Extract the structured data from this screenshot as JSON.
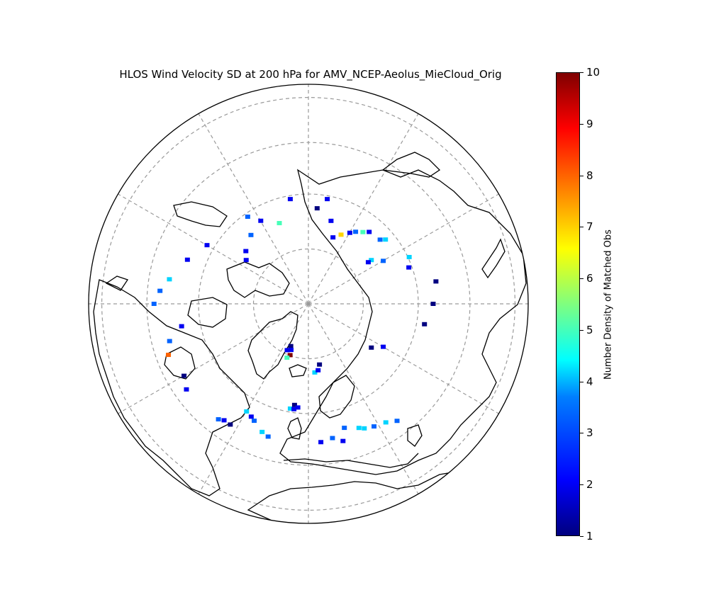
{
  "title": "HLOS Wind Velocity SD at 200 hPa for AMV_NCEP-Aeolus_MieCloud_Orig",
  "projection": "north-polar-stereographic",
  "grid": true,
  "colorbar": {
    "label": "Number Density of Matched Obs",
    "min": 1,
    "max": 10,
    "colormap": "jet",
    "ticks": [
      "1",
      "2",
      "3",
      "4",
      "5",
      "6",
      "7",
      "8",
      "9",
      "10"
    ]
  },
  "chart_data": {
    "type": "heatmap",
    "title": "HLOS Wind Velocity SD at 200 hPa for AMV_NCEP-Aeolus_MieCloud_Orig",
    "value_label": "Number Density of Matched Obs",
    "value_range": [
      1,
      10
    ],
    "cells": [
      {
        "lon": -38,
        "lat": 13,
        "v": 3
      },
      {
        "lon": -36,
        "lat": 14,
        "v": 2
      },
      {
        "lon": -33,
        "lat": 14,
        "v": 1
      },
      {
        "lon": -30,
        "lat": 22,
        "v": 4
      },
      {
        "lon": -27,
        "lat": 21,
        "v": 2
      },
      {
        "lon": -25,
        "lat": 20,
        "v": 3
      },
      {
        "lon": -20,
        "lat": 17,
        "v": 4
      },
      {
        "lon": -17,
        "lat": 16,
        "v": 3
      },
      {
        "lon": -10,
        "lat": 30,
        "v": 4
      },
      {
        "lon": -8,
        "lat": 32,
        "v": 1
      },
      {
        "lon": -8,
        "lat": 30,
        "v": 2
      },
      {
        "lon": -6,
        "lat": 31,
        "v": 2
      },
      {
        "lon": 5,
        "lat": 16,
        "v": 2
      },
      {
        "lon": 10,
        "lat": 17,
        "v": 3
      },
      {
        "lon": 14,
        "lat": 15,
        "v": 2
      },
      {
        "lon": 16,
        "lat": 20,
        "v": 3
      },
      {
        "lon": 22,
        "lat": 18,
        "v": 4
      },
      {
        "lon": 24,
        "lat": 17,
        "v": 4
      },
      {
        "lon": 28,
        "lat": 16,
        "v": 3
      },
      {
        "lon": 33,
        "lat": 15,
        "v": 4
      },
      {
        "lon": 37,
        "lat": 13,
        "v": 3
      },
      {
        "lon": 5,
        "lat": 49,
        "v": 4
      },
      {
        "lon": 8,
        "lat": 50,
        "v": 2
      },
      {
        "lon": 10,
        "lat": 53,
        "v": 1
      },
      {
        "lon": -25,
        "lat": 59,
        "v": 2
      },
      {
        "lon": -23,
        "lat": 62,
        "v": 1
      },
      {
        "lon": -21,
        "lat": 60,
        "v": 2
      },
      {
        "lon": -20,
        "lat": 57,
        "v": 10
      },
      {
        "lon": -22,
        "lat": 55,
        "v": 5
      },
      {
        "lon": 132,
        "lat": 35,
        "v": 3
      },
      {
        "lon": 130,
        "lat": 33,
        "v": 4
      },
      {
        "lon": 140,
        "lat": 36,
        "v": 2
      },
      {
        "lon": 143,
        "lat": 38,
        "v": 5
      },
      {
        "lon": 150,
        "lat": 42,
        "v": 2
      },
      {
        "lon": 147,
        "lat": 40,
        "v": 3
      },
      {
        "lon": 155,
        "lat": 45,
        "v": 7
      },
      {
        "lon": 160,
        "lat": 48,
        "v": 2
      },
      {
        "lon": 165,
        "lat": 40,
        "v": 2
      },
      {
        "lon": 170,
        "lat": 30,
        "v": 2
      },
      {
        "lon": 175,
        "lat": 35,
        "v": 1
      },
      {
        "lon": 125,
        "lat": 45,
        "v": 4
      },
      {
        "lon": 125,
        "lat": 47,
        "v": 2
      },
      {
        "lon": 120,
        "lat": 40,
        "v": 3
      },
      {
        "lon": 110,
        "lat": 30,
        "v": 2
      },
      {
        "lon": 115,
        "lat": 28,
        "v": 4
      },
      {
        "lon": 80,
        "lat": 25,
        "v": 1
      },
      {
        "lon": 90,
        "lat": 22,
        "v": 1
      },
      {
        "lon": 100,
        "lat": 20,
        "v": 1
      },
      {
        "lon": 60,
        "lat": 40,
        "v": 2
      },
      {
        "lon": 55,
        "lat": 45,
        "v": 1
      },
      {
        "lon": -150,
        "lat": 35,
        "v": 2
      },
      {
        "lon": -140,
        "lat": 38,
        "v": 3
      },
      {
        "lon": -160,
        "lat": 40,
        "v": 5
      },
      {
        "lon": -145,
        "lat": 30,
        "v": 3
      },
      {
        "lon": -170,
        "lat": 30,
        "v": 2
      },
      {
        "lon": -120,
        "lat": 25,
        "v": 2
      },
      {
        "lon": -110,
        "lat": 20,
        "v": 2
      },
      {
        "lon": -100,
        "lat": 15,
        "v": 4
      },
      {
        "lon": -95,
        "lat": 12,
        "v": 3
      },
      {
        "lon": -90,
        "lat": 10,
        "v": 3
      },
      {
        "lon": -125,
        "lat": 45,
        "v": 2
      },
      {
        "lon": -130,
        "lat": 42,
        "v": 2
      },
      {
        "lon": -75,
        "lat": 14,
        "v": 3
      },
      {
        "lon": -70,
        "lat": 12,
        "v": 8
      },
      {
        "lon": -80,
        "lat": 20,
        "v": 2
      },
      {
        "lon": -60,
        "lat": 14,
        "v": 1
      },
      {
        "lon": -55,
        "lat": 12,
        "v": 2
      }
    ]
  }
}
